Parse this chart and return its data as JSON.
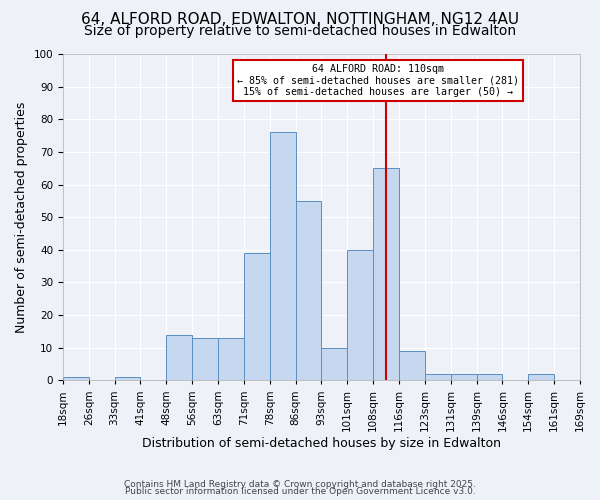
{
  "title": "64, ALFORD ROAD, EDWALTON, NOTTINGHAM, NG12 4AU",
  "subtitle": "Size of property relative to semi-detached houses in Edwalton",
  "xlabel": "Distribution of semi-detached houses by size in Edwalton",
  "ylabel": "Number of semi-detached properties",
  "bin_labels": [
    "18sqm",
    "26sqm",
    "33sqm",
    "41sqm",
    "48sqm",
    "56sqm",
    "63sqm",
    "71sqm",
    "78sqm",
    "86sqm",
    "93sqm",
    "101sqm",
    "108sqm",
    "116sqm",
    "123sqm",
    "131sqm",
    "139sqm",
    "146sqm",
    "154sqm",
    "161sqm",
    "169sqm"
  ],
  "bar_heights": [
    1,
    0,
    1,
    0,
    14,
    13,
    13,
    39,
    76,
    55,
    10,
    40,
    65,
    9,
    2,
    2,
    2,
    0,
    2,
    0
  ],
  "bar_color": "#c5d8f0",
  "bar_edge_color": "#5a8fc3",
  "ylim": [
    0,
    100
  ],
  "yticks": [
    0,
    10,
    20,
    30,
    40,
    50,
    60,
    70,
    80,
    90,
    100
  ],
  "vline_x_index": 12,
  "vline_color": "#cc0000",
  "annotation_title": "64 ALFORD ROAD: 110sqm",
  "annotation_line1": "← 85% of semi-detached houses are smaller (281)",
  "annotation_line2": "15% of semi-detached houses are larger (50) →",
  "annotation_box_color": "#cc0000",
  "bg_color": "#eef2f8",
  "plot_bg_color": "#eef2f8",
  "grid_color": "#ffffff",
  "footer_line1": "Contains HM Land Registry data © Crown copyright and database right 2025.",
  "footer_line2": "Public sector information licensed under the Open Government Licence v3.0.",
  "title_fontsize": 11,
  "subtitle_fontsize": 10,
  "axis_label_fontsize": 9,
  "tick_fontsize": 7.5
}
